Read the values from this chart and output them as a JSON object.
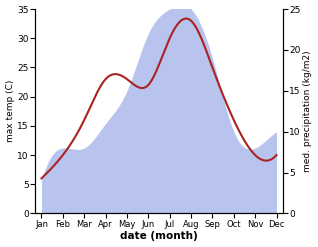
{
  "months": [
    "Jan",
    "Feb",
    "Mar",
    "Apr",
    "May",
    "Jun",
    "Jul",
    "Aug",
    "Sep",
    "Oct",
    "Nov",
    "Dec"
  ],
  "month_positions": [
    0,
    1,
    2,
    3,
    4,
    5,
    6,
    7,
    8,
    9,
    10,
    11
  ],
  "temp_values": [
    6,
    10,
    16,
    23,
    23,
    22,
    30,
    33,
    25,
    16,
    10,
    10
  ],
  "precip_values": [
    4,
    8,
    8,
    11,
    15,
    22,
    25,
    25,
    19,
    10,
    8,
    10
  ],
  "temp_ylim": [
    0,
    35
  ],
  "precip_ylim": [
    0,
    25
  ],
  "temp_color": "#aa2222",
  "precip_fill_color": "#b8c4ee",
  "ylabel_left": "max temp (C)",
  "ylabel_right": "med. precipitation (kg/m2)",
  "xlabel": "date (month)",
  "left_yticks": [
    0,
    5,
    10,
    15,
    20,
    25,
    30,
    35
  ],
  "right_yticks": [
    0,
    5,
    10,
    15,
    20,
    25
  ],
  "background_color": "#ffffff",
  "figwidth": 3.18,
  "figheight": 2.47,
  "dpi": 100
}
